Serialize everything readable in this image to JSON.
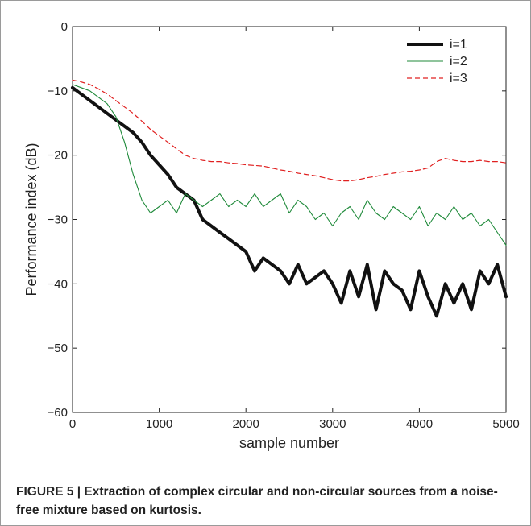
{
  "chart_data": {
    "type": "line",
    "title": "",
    "xlabel": "sample number",
    "ylabel": "Performance index (dB)",
    "xlim": [
      0,
      5000
    ],
    "ylim": [
      -60,
      0
    ],
    "xticks": [
      "0",
      "1000",
      "2000",
      "3000",
      "4000",
      "5000"
    ],
    "yticks": [
      "0",
      "−10",
      "−20",
      "−30",
      "−40",
      "−50",
      "−60"
    ],
    "legend_position": "top-right",
    "grid": false,
    "series": [
      {
        "name": "i=1",
        "color": "#111111",
        "style": "solid-thick",
        "x": [
          0,
          100,
          200,
          300,
          400,
          500,
          600,
          700,
          800,
          900,
          1000,
          1100,
          1200,
          1300,
          1400,
          1500,
          1600,
          1700,
          1800,
          1900,
          2000,
          2100,
          2200,
          2300,
          2400,
          2500,
          2600,
          2700,
          2800,
          2900,
          3000,
          3100,
          3200,
          3300,
          3400,
          3500,
          3600,
          3700,
          3800,
          3900,
          4000,
          4100,
          4200,
          4300,
          4400,
          4500,
          4600,
          4700,
          4800,
          4900,
          5000
        ],
        "values": [
          -9.5,
          -10.5,
          -11.5,
          -12.5,
          -13.5,
          -14.5,
          -15.5,
          -16.5,
          -18,
          -20,
          -21.5,
          -23,
          -25,
          -26,
          -27,
          -30,
          -31,
          -32,
          -33,
          -34,
          -35,
          -38,
          -36,
          -37,
          -38,
          -40,
          -37,
          -40,
          -39,
          -38,
          -40,
          -43,
          -38,
          -42,
          -37,
          -44,
          -38,
          -40,
          -41,
          -44,
          -38,
          -42,
          -45,
          -40,
          -43,
          -40,
          -44,
          -38,
          -40,
          -37,
          -42
        ]
      },
      {
        "name": "i=2",
        "color": "#1f8a3a",
        "style": "solid-thin",
        "x": [
          0,
          100,
          200,
          300,
          400,
          500,
          600,
          700,
          800,
          900,
          1000,
          1100,
          1200,
          1300,
          1400,
          1500,
          1600,
          1700,
          1800,
          1900,
          2000,
          2100,
          2200,
          2300,
          2400,
          2500,
          2600,
          2700,
          2800,
          2900,
          3000,
          3100,
          3200,
          3300,
          3400,
          3500,
          3600,
          3700,
          3800,
          3900,
          4000,
          4100,
          4200,
          4300,
          4400,
          4500,
          4600,
          4700,
          4800,
          4900,
          5000
        ],
        "values": [
          -9,
          -9.5,
          -10,
          -11,
          -12,
          -14,
          -18,
          -23,
          -27,
          -29,
          -28,
          -27,
          -29,
          -26,
          -27,
          -28,
          -27,
          -26,
          -28,
          -27,
          -28,
          -26,
          -28,
          -27,
          -26,
          -29,
          -27,
          -28,
          -30,
          -29,
          -31,
          -29,
          -28,
          -30,
          -27,
          -29,
          -30,
          -28,
          -29,
          -30,
          -28,
          -31,
          -29,
          -30,
          -28,
          -30,
          -29,
          -31,
          -30,
          -32,
          -34
        ]
      },
      {
        "name": "i=3",
        "color": "#e02020",
        "style": "dashed",
        "x": [
          0,
          100,
          200,
          300,
          400,
          500,
          600,
          700,
          800,
          900,
          1000,
          1100,
          1200,
          1300,
          1400,
          1500,
          1600,
          1700,
          1800,
          1900,
          2000,
          2100,
          2200,
          2300,
          2400,
          2500,
          2600,
          2700,
          2800,
          2900,
          3000,
          3100,
          3200,
          3300,
          3400,
          3500,
          3600,
          3700,
          3800,
          3900,
          4000,
          4100,
          4200,
          4300,
          4400,
          4500,
          4600,
          4700,
          4800,
          4900,
          5000
        ],
        "values": [
          -8.3,
          -8.6,
          -9,
          -9.7,
          -10.5,
          -11.5,
          -12.5,
          -13.5,
          -14.7,
          -16,
          -17,
          -18,
          -19,
          -20,
          -20.5,
          -20.8,
          -21,
          -21,
          -21.2,
          -21.3,
          -21.5,
          -21.6,
          -21.7,
          -22,
          -22.3,
          -22.5,
          -22.8,
          -23,
          -23.2,
          -23.5,
          -23.8,
          -24,
          -24,
          -23.8,
          -23.5,
          -23.3,
          -23,
          -22.8,
          -22.6,
          -22.5,
          -22.3,
          -22,
          -21,
          -20.5,
          -20.8,
          -21,
          -21,
          -20.8,
          -21,
          -21,
          -21.2
        ]
      }
    ]
  },
  "caption": {
    "text": "FIGURE 5 | Extraction of complex circular and non-circular sources from a noise-free mixture based on kurtosis."
  }
}
